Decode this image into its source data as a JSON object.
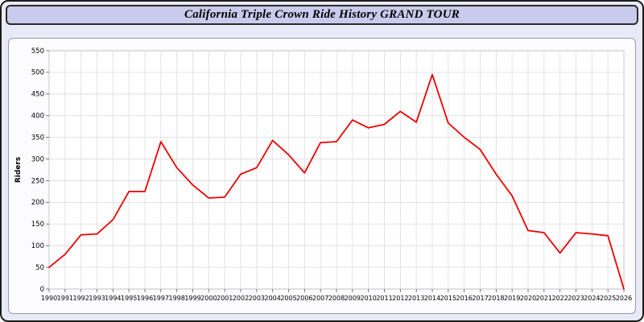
{
  "window": {
    "title": "California Triple Crown Ride History GRAND TOUR"
  },
  "chart_data": {
    "type": "line",
    "title": "California Triple Crown Ride History GRAND TOUR",
    "xlabel": "",
    "ylabel": "Riders",
    "ylim": [
      0,
      550
    ],
    "ytick_step": 50,
    "grid": true,
    "legend_position": "none",
    "line_color": "#ee0000",
    "categories": [
      1990,
      1991,
      1992,
      1993,
      1994,
      1995,
      1996,
      1997,
      1998,
      1999,
      2000,
      2001,
      2002,
      2003,
      2004,
      2005,
      2006,
      2007,
      2008,
      2009,
      2010,
      2011,
      2012,
      2013,
      2014,
      2015,
      2016,
      2017,
      2018,
      2019,
      2020,
      2021,
      2022,
      2023,
      2024,
      2025,
      2026
    ],
    "values": [
      50,
      80,
      125,
      127,
      160,
      225,
      225,
      340,
      280,
      240,
      210,
      212,
      265,
      280,
      343,
      310,
      268,
      338,
      340,
      390,
      372,
      380,
      410,
      385,
      495,
      383,
      350,
      322,
      265,
      215,
      135,
      130,
      83,
      130,
      127,
      123,
      0
    ],
    "colors": {
      "grid": "#dcdcdc",
      "axis": "#555566",
      "plot_background": "#ffffff",
      "tick_text": "#000000"
    }
  }
}
